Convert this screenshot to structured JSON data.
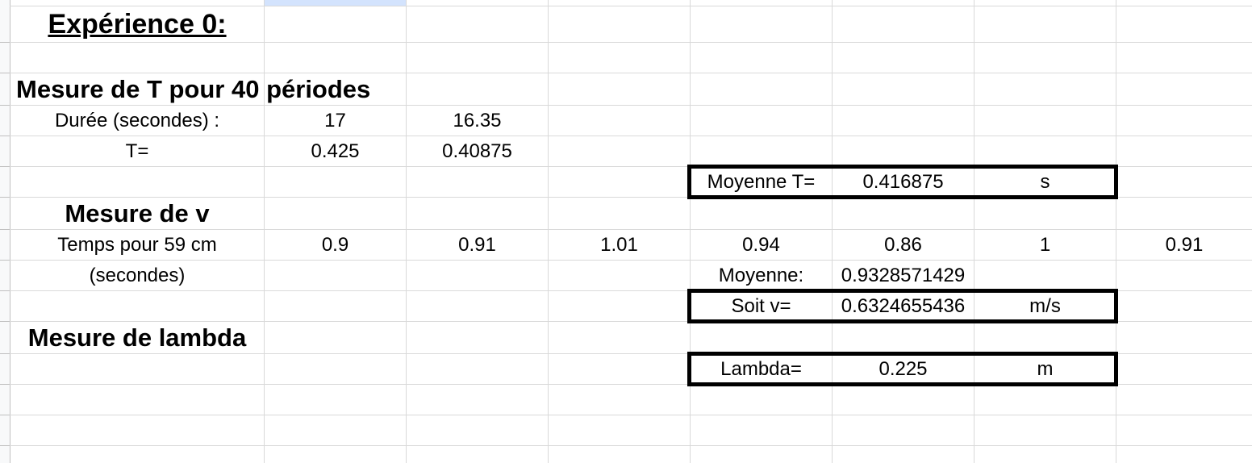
{
  "sheet": {
    "title": "Expérience 0:",
    "period_section": {
      "heading": "Mesure de T pour 40 périodes",
      "duration_label": "Durée (secondes) :",
      "duration_values": [
        "17",
        "16.35"
      ],
      "t_label": "T=",
      "t_values": [
        "0.425",
        "0.40875"
      ],
      "mean_label": "Moyenne T=",
      "mean_value": "0.416875",
      "mean_unit": "s"
    },
    "velocity_section": {
      "heading": "Mesure de v",
      "time_label_line1": "Temps pour 59 cm",
      "time_label_line2": "(secondes)",
      "time_values": [
        "0.9",
        "0.91",
        "1.01",
        "0.94",
        "0.86",
        "1",
        "0.91"
      ],
      "mean_label": "Moyenne:",
      "mean_value": "0.9328571429",
      "v_label": "Soit v=",
      "v_value": "0.6324655436",
      "v_unit": "m/s"
    },
    "lambda_section": {
      "heading": "Mesure de lambda",
      "lambda_label": "Lambda=",
      "lambda_value": "0.225",
      "lambda_unit": "m"
    }
  }
}
